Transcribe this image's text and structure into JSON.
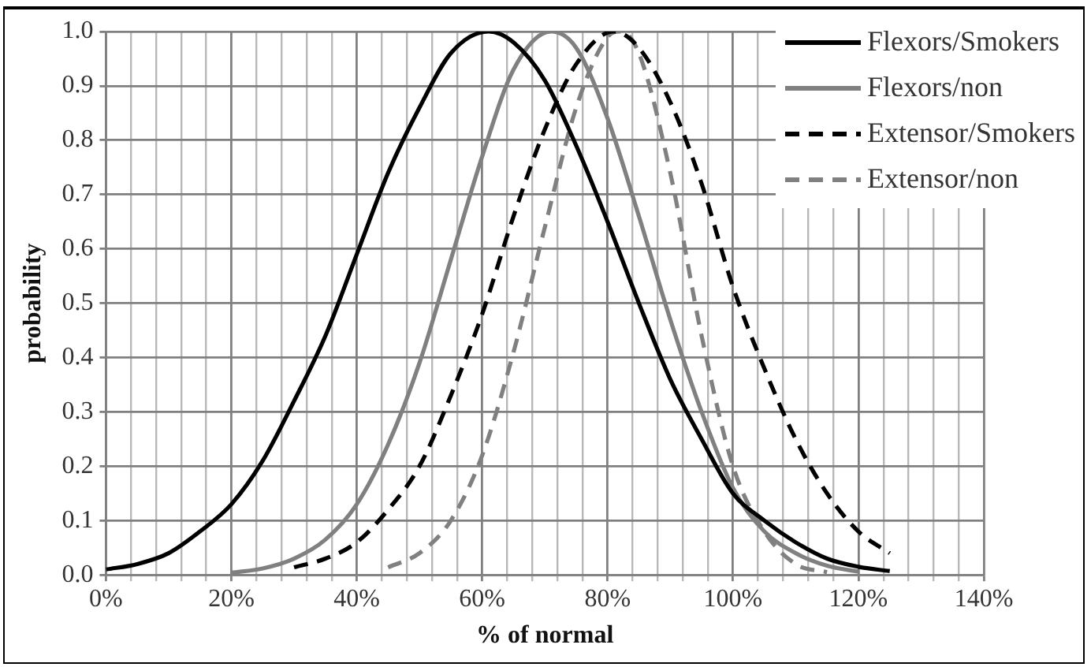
{
  "chart_data": {
    "type": "line",
    "xlabel": "% of normal",
    "ylabel": "probability",
    "legend": "top right",
    "grid": true,
    "marker": "none",
    "xlim": [
      0,
      140
    ],
    "ylim": [
      0,
      1
    ],
    "xticks": [
      {
        "value": 0,
        "label": "0%"
      },
      {
        "value": 4,
        "label": null
      },
      {
        "value": 8,
        "label": null
      },
      {
        "value": 12,
        "label": null
      },
      {
        "value": 16,
        "label": null
      },
      {
        "value": 20,
        "label": "20%"
      },
      {
        "value": 24,
        "label": null
      },
      {
        "value": 28,
        "label": null
      },
      {
        "value": 32,
        "label": null
      },
      {
        "value": 36,
        "label": null
      },
      {
        "value": 40,
        "label": "40%"
      },
      {
        "value": 44,
        "label": null
      },
      {
        "value": 48,
        "label": null
      },
      {
        "value": 52,
        "label": null
      },
      {
        "value": 56,
        "label": null
      },
      {
        "value": 60,
        "label": "60%"
      },
      {
        "value": 64,
        "label": null
      },
      {
        "value": 68,
        "label": null
      },
      {
        "value": 72,
        "label": null
      },
      {
        "value": 76,
        "label": null
      },
      {
        "value": 80,
        "label": "80%"
      },
      {
        "value": 84,
        "label": null
      },
      {
        "value": 88,
        "label": null
      },
      {
        "value": 92,
        "label": null
      },
      {
        "value": 96,
        "label": null
      },
      {
        "value": 100,
        "label": "100%"
      },
      {
        "value": 104,
        "label": null
      },
      {
        "value": 108,
        "label": null
      },
      {
        "value": 112,
        "label": null
      },
      {
        "value": 116,
        "label": null
      },
      {
        "value": 120,
        "label": "120%"
      },
      {
        "value": 124,
        "label": null
      },
      {
        "value": 128,
        "label": null
      },
      {
        "value": 132,
        "label": null
      },
      {
        "value": 136,
        "label": null
      },
      {
        "value": 140,
        "label": "140%"
      }
    ],
    "yticks": [
      {
        "value": 0,
        "label": "0.0"
      },
      {
        "value": 0.1,
        "label": "0.1"
      },
      {
        "value": 0.2,
        "label": "0.2"
      },
      {
        "value": 0.3,
        "label": "0.3"
      },
      {
        "value": 0.4,
        "label": "0.4"
      },
      {
        "value": 0.5,
        "label": "0.5"
      },
      {
        "value": 0.6,
        "label": "0.6"
      },
      {
        "value": 0.7,
        "label": "0.7"
      },
      {
        "value": 0.8,
        "label": "0.8"
      },
      {
        "value": 0.9,
        "label": "0.9"
      },
      {
        "value": 1,
        "label": "1.0"
      }
    ],
    "series": [
      {
        "name": "Flexors/Smokers",
        "color": "#000000",
        "line_style": "solid",
        "x": [
          0,
          5,
          10,
          15,
          20,
          25,
          30,
          35,
          40,
          45,
          50,
          55,
          61,
          65,
          70,
          75,
          80,
          85,
          90,
          95,
          100,
          105,
          110,
          115,
          120,
          125
        ],
        "values": [
          0.01,
          0.02,
          0.04,
          0.08,
          0.13,
          0.21,
          0.32,
          0.44,
          0.59,
          0.74,
          0.86,
          0.96,
          1.0,
          0.98,
          0.91,
          0.79,
          0.65,
          0.5,
          0.36,
          0.25,
          0.15,
          0.1,
          0.06,
          0.03,
          0.015,
          0.007
        ]
      },
      {
        "name": "Flexors/non",
        "color": "#808080",
        "line_style": "solid",
        "x": [
          20,
          25,
          30,
          35,
          40,
          45,
          50,
          55,
          60,
          65,
          71,
          75,
          80,
          85,
          90,
          95,
          100,
          105,
          110,
          115,
          120
        ],
        "values": [
          0.004,
          0.012,
          0.03,
          0.065,
          0.13,
          0.24,
          0.39,
          0.58,
          0.77,
          0.93,
          1.0,
          0.97,
          0.84,
          0.66,
          0.47,
          0.3,
          0.16,
          0.08,
          0.04,
          0.017,
          0.006
        ]
      },
      {
        "name": "Extensor/Smokers",
        "color": "#000000",
        "line_style": "dashed",
        "x": [
          30,
          35,
          40,
          45,
          50,
          55,
          60,
          65,
          70,
          75,
          81,
          85,
          90,
          95,
          100,
          105,
          110,
          115,
          120,
          125
        ],
        "values": [
          0.014,
          0.03,
          0.06,
          0.12,
          0.2,
          0.33,
          0.48,
          0.66,
          0.82,
          0.94,
          1.0,
          0.97,
          0.87,
          0.72,
          0.53,
          0.38,
          0.25,
          0.15,
          0.08,
          0.04
        ]
      },
      {
        "name": "Extensor/non",
        "color": "#808080",
        "line_style": "dashed",
        "x": [
          45,
          50,
          55,
          60,
          65,
          70,
          75,
          80,
          82,
          85,
          90,
          95,
          100,
          105,
          110,
          115
        ],
        "values": [
          0.014,
          0.04,
          0.1,
          0.22,
          0.41,
          0.64,
          0.86,
          0.99,
          1.0,
          0.96,
          0.74,
          0.44,
          0.2,
          0.08,
          0.02,
          0.005
        ]
      }
    ]
  }
}
